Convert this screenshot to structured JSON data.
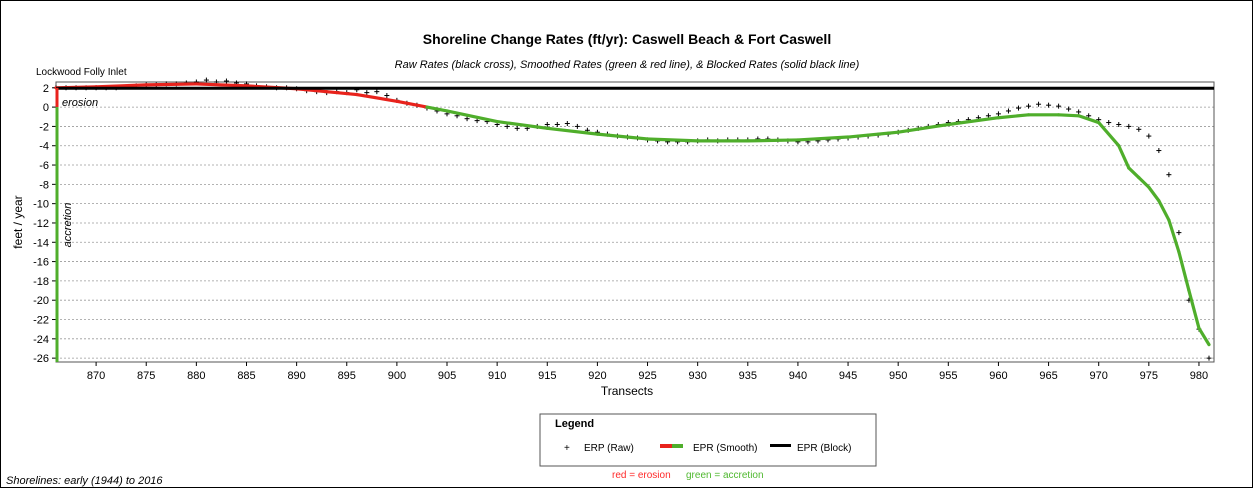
{
  "chart_data": {
    "type": "line",
    "title": "Shoreline Change Rates (ft/yr): Caswell Beach & Fort Caswell",
    "subtitle": "Raw Rates (black cross), Smoothed Rates (green & red line), & Blocked Rates (solid black line)",
    "xlabel": "Transects",
    "ylabel": "feet / year",
    "xlim": [
      866,
      981.5
    ],
    "ylim": [
      -26.4,
      2.6
    ],
    "x_ticks": [
      870,
      875,
      880,
      885,
      890,
      895,
      900,
      905,
      910,
      915,
      920,
      925,
      930,
      935,
      940,
      945,
      950,
      955,
      960,
      965,
      970,
      975,
      980
    ],
    "y_ticks": [
      2,
      0,
      -2,
      -4,
      -6,
      -8,
      -10,
      -12,
      -14,
      -16,
      -18,
      -20,
      -22,
      -24,
      -26
    ],
    "grid": true,
    "annotations": {
      "top_left": "Lockwood Folly Inlet",
      "erosion": "erosion",
      "accretion": "accretion",
      "shorelines": "Shorelines: early (1944) to 2016"
    },
    "legend": {
      "title": "Legend",
      "items": [
        "ERP (Raw)",
        "EPR (Smooth)",
        "EPR (Block)"
      ],
      "footnote_red": "red = erosion",
      "footnote_green": "green = accretion"
    },
    "series": [
      {
        "name": "ERP (Raw)",
        "style": "cross",
        "color": "#000000",
        "points": [
          [
            866,
            2.0
          ],
          [
            867,
            2.0
          ],
          [
            868,
            2.0
          ],
          [
            869,
            2.0
          ],
          [
            870,
            2.0
          ],
          [
            871,
            2.0
          ],
          [
            872,
            2.0
          ],
          [
            873,
            2.1
          ],
          [
            874,
            2.2
          ],
          [
            875,
            2.3
          ],
          [
            876,
            2.3
          ],
          [
            877,
            2.4
          ],
          [
            878,
            2.4
          ],
          [
            879,
            2.5
          ],
          [
            880,
            2.6
          ],
          [
            881,
            2.8
          ],
          [
            882,
            2.6
          ],
          [
            883,
            2.7
          ],
          [
            884,
            2.5
          ],
          [
            885,
            2.4
          ],
          [
            886,
            2.2
          ],
          [
            887,
            2.1
          ],
          [
            888,
            2.0
          ],
          [
            889,
            2.0
          ],
          [
            890,
            1.9
          ],
          [
            891,
            1.7
          ],
          [
            892,
            1.6
          ],
          [
            893,
            1.5
          ],
          [
            894,
            1.6
          ],
          [
            895,
            1.5
          ],
          [
            896,
            1.8
          ],
          [
            897,
            1.5
          ],
          [
            898,
            1.6
          ],
          [
            899,
            1.2
          ],
          [
            900,
            0.7
          ],
          [
            901,
            0.4
          ],
          [
            902,
            0.2
          ],
          [
            903,
            -0.1
          ],
          [
            904,
            -0.4
          ],
          [
            905,
            -0.7
          ],
          [
            906,
            -0.9
          ],
          [
            907,
            -1.2
          ],
          [
            908,
            -1.4
          ],
          [
            909,
            -1.5
          ],
          [
            910,
            -1.8
          ],
          [
            911,
            -2.0
          ],
          [
            912,
            -2.2
          ],
          [
            913,
            -2.2
          ],
          [
            914,
            -2.0
          ],
          [
            915,
            -1.8
          ],
          [
            916,
            -1.8
          ],
          [
            917,
            -1.7
          ],
          [
            918,
            -2.0
          ],
          [
            919,
            -2.4
          ],
          [
            920,
            -2.6
          ],
          [
            921,
            -2.8
          ],
          [
            922,
            -3.0
          ],
          [
            923,
            -3.1
          ],
          [
            924,
            -3.2
          ],
          [
            925,
            -3.4
          ],
          [
            926,
            -3.5
          ],
          [
            927,
            -3.6
          ],
          [
            928,
            -3.6
          ],
          [
            929,
            -3.6
          ],
          [
            930,
            -3.5
          ],
          [
            931,
            -3.4
          ],
          [
            932,
            -3.5
          ],
          [
            933,
            -3.4
          ],
          [
            934,
            -3.4
          ],
          [
            935,
            -3.4
          ],
          [
            936,
            -3.3
          ],
          [
            937,
            -3.3
          ],
          [
            938,
            -3.4
          ],
          [
            939,
            -3.5
          ],
          [
            940,
            -3.6
          ],
          [
            941,
            -3.6
          ],
          [
            942,
            -3.5
          ],
          [
            943,
            -3.4
          ],
          [
            944,
            -3.3
          ],
          [
            945,
            -3.2
          ],
          [
            946,
            -3.1
          ],
          [
            947,
            -3.0
          ],
          [
            948,
            -2.9
          ],
          [
            949,
            -2.8
          ],
          [
            950,
            -2.6
          ],
          [
            951,
            -2.4
          ],
          [
            952,
            -2.2
          ],
          [
            953,
            -2.0
          ],
          [
            954,
            -1.8
          ],
          [
            955,
            -1.6
          ],
          [
            956,
            -1.5
          ],
          [
            957,
            -1.3
          ],
          [
            958,
            -1.1
          ],
          [
            959,
            -0.9
          ],
          [
            960,
            -0.7
          ],
          [
            961,
            -0.4
          ],
          [
            962,
            -0.1
          ],
          [
            963,
            0.1
          ],
          [
            964,
            0.3
          ],
          [
            965,
            0.2
          ],
          [
            966,
            0.1
          ],
          [
            967,
            -0.2
          ],
          [
            968,
            -0.5
          ],
          [
            969,
            -0.9
          ],
          [
            970,
            -1.3
          ],
          [
            971,
            -1.6
          ],
          [
            972,
            -1.8
          ],
          [
            973,
            -2.0
          ],
          [
            974,
            -2.3
          ],
          [
            975,
            -3.0
          ],
          [
            976,
            -4.5
          ],
          [
            977,
            -7.0
          ],
          [
            978,
            -13.0
          ],
          [
            979,
            -20.0
          ],
          [
            980,
            -23.0
          ],
          [
            981,
            -26.0
          ]
        ]
      },
      {
        "name": "EPR (Smooth)",
        "style": "line",
        "color_erosion": "#e8221c",
        "color_accretion": "#4fae2b",
        "points": [
          [
            866,
            2.0
          ],
          [
            870,
            2.1
          ],
          [
            875,
            2.3
          ],
          [
            880,
            2.4
          ],
          [
            885,
            2.2
          ],
          [
            890,
            1.9
          ],
          [
            893,
            1.6
          ],
          [
            896,
            1.3
          ],
          [
            900,
            0.6
          ],
          [
            903,
            0.0
          ],
          [
            905,
            -0.4
          ],
          [
            910,
            -1.5
          ],
          [
            915,
            -2.2
          ],
          [
            920,
            -2.8
          ],
          [
            925,
            -3.3
          ],
          [
            930,
            -3.5
          ],
          [
            935,
            -3.5
          ],
          [
            940,
            -3.4
          ],
          [
            945,
            -3.1
          ],
          [
            950,
            -2.6
          ],
          [
            955,
            -1.8
          ],
          [
            960,
            -1.1
          ],
          [
            963,
            -0.8
          ],
          [
            966,
            -0.8
          ],
          [
            968,
            -0.9
          ],
          [
            970,
            -1.6
          ],
          [
            972,
            -4.0
          ],
          [
            973,
            -6.3
          ],
          [
            974,
            -7.3
          ],
          [
            975,
            -8.3
          ],
          [
            976,
            -9.7
          ],
          [
            977,
            -11.7
          ],
          [
            978,
            -15.0
          ],
          [
            979,
            -19.0
          ],
          [
            980,
            -22.9
          ],
          [
            981,
            -24.6
          ]
        ]
      },
      {
        "name": "EPR (Block)",
        "style": "line",
        "color": "#000000",
        "points": [
          [
            866,
            1.95
          ],
          [
            981.5,
            1.95
          ]
        ]
      }
    ]
  },
  "colors": {
    "erosion": "#e8221c",
    "accretion": "#4fae2b",
    "grid": "#9a9a9a",
    "block": "#000000"
  }
}
